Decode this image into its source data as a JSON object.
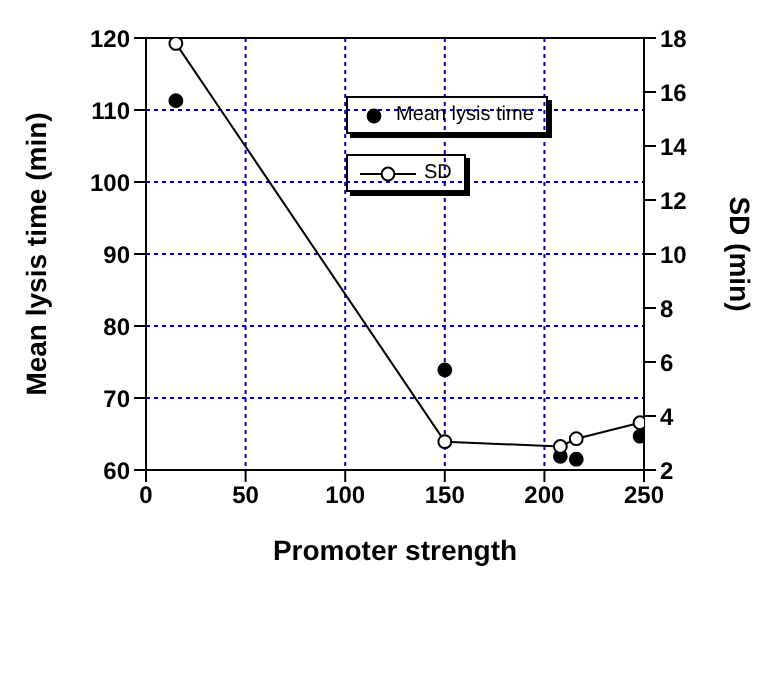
{
  "chart_data": {
    "type": "scatter",
    "xlabel": "Promoter strength",
    "ylabel": "Mean lysis time (min)",
    "y2label": "SD (min)",
    "xlim": [
      0,
      250
    ],
    "xticks": [
      0,
      50,
      100,
      150,
      200,
      250
    ],
    "ylim": [
      60,
      120
    ],
    "yticks": [
      60,
      70,
      80,
      90,
      100,
      110,
      120
    ],
    "y2lim": [
      2,
      18
    ],
    "y2ticks": [
      2,
      4,
      6,
      8,
      10,
      12,
      14,
      16,
      18
    ],
    "grid": true,
    "legend": "top right",
    "marker": "circle",
    "line_style": "solid",
    "series": [
      {
        "name": "Mean lysis time",
        "type": "scatter",
        "color": "#000000",
        "x": [
          15,
          150,
          208,
          216,
          248
        ],
        "values": [
          111.3,
          73.9,
          61.9,
          61.5,
          64.7
        ]
      },
      {
        "name": "SD",
        "type": "line",
        "axis": "y2",
        "color": "#000000",
        "x": [
          15,
          150,
          208,
          216,
          248
        ],
        "values": [
          17.8,
          3.05,
          2.87,
          3.16,
          3.75
        ]
      }
    ]
  }
}
